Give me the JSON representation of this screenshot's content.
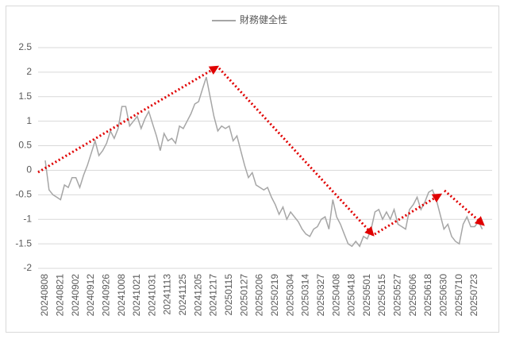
{
  "chart_data": {
    "type": "line",
    "categories": [
      "20240808",
      null,
      null,
      null,
      "20240821",
      null,
      null,
      null,
      "20240902",
      null,
      null,
      null,
      "20240912",
      null,
      null,
      null,
      "20240926",
      null,
      null,
      null,
      "20241008",
      null,
      null,
      null,
      "20241021",
      null,
      null,
      null,
      "20241031",
      null,
      null,
      null,
      "20241113",
      null,
      null,
      null,
      "20241125",
      null,
      null,
      null,
      "20241205",
      null,
      null,
      null,
      "20241217",
      null,
      null,
      null,
      "20250115",
      null,
      null,
      null,
      "20250127",
      null,
      null,
      null,
      "20250206",
      null,
      null,
      null,
      "20250219",
      null,
      null,
      null,
      "20250304",
      null,
      null,
      null,
      "20250314",
      null,
      null,
      null,
      "20250327",
      null,
      null,
      null,
      "20250408",
      null,
      null,
      null,
      "20250418",
      null,
      null,
      null,
      "20250501",
      null,
      null,
      null,
      "20250515",
      null,
      null,
      null,
      "20250527",
      null,
      null,
      null,
      "20250606",
      null,
      null,
      null,
      "20250618",
      null,
      null,
      null,
      "20250630",
      null,
      null,
      null,
      "20250710",
      null,
      null,
      null,
      "20250723",
      null,
      null
    ],
    "series": [
      {
        "name": "財務健全性",
        "color": "#a6a6a6",
        "values": [
          0.2,
          -0.4,
          -0.5,
          -0.55,
          -0.6,
          -0.3,
          -0.35,
          -0.15,
          -0.15,
          -0.35,
          -0.1,
          0.1,
          0.35,
          0.6,
          0.3,
          0.4,
          0.55,
          0.8,
          0.65,
          0.85,
          1.3,
          1.3,
          0.9,
          1.0,
          1.1,
          0.85,
          1.05,
          1.2,
          0.95,
          0.7,
          0.4,
          0.75,
          0.6,
          0.65,
          0.55,
          0.9,
          0.85,
          1.0,
          1.15,
          1.35,
          1.4,
          1.65,
          1.9,
          1.5,
          1.1,
          0.8,
          0.9,
          0.85,
          0.9,
          0.6,
          0.7,
          0.4,
          0.1,
          -0.15,
          -0.05,
          -0.3,
          -0.35,
          -0.4,
          -0.35,
          -0.55,
          -0.7,
          -0.9,
          -0.75,
          -1.0,
          -0.85,
          -0.95,
          -1.05,
          -1.2,
          -1.3,
          -1.35,
          -1.2,
          -1.15,
          -1.0,
          -0.95,
          -1.2,
          -0.6,
          -0.95,
          -1.1,
          -1.3,
          -1.5,
          -1.55,
          -1.45,
          -1.55,
          -1.35,
          -1.4,
          -1.2,
          -0.85,
          -0.8,
          -1.0,
          -0.85,
          -1.0,
          -0.8,
          -1.1,
          -1.15,
          -1.2,
          -0.8,
          -0.7,
          -0.55,
          -0.8,
          -0.65,
          -0.45,
          -0.4,
          -0.6,
          -0.9,
          -1.2,
          -1.1,
          -1.35,
          -1.45,
          -1.5,
          -1.1,
          -0.95,
          -1.15,
          -1.15,
          -1.05,
          -1.2
        ]
      }
    ],
    "ylim": [
      -2,
      2.5
    ],
    "yticks": [
      -2,
      -1.5,
      -1,
      -0.5,
      0,
      0.5,
      1,
      1.5,
      2,
      2.5
    ],
    "grid": true,
    "legend": "top"
  }
}
